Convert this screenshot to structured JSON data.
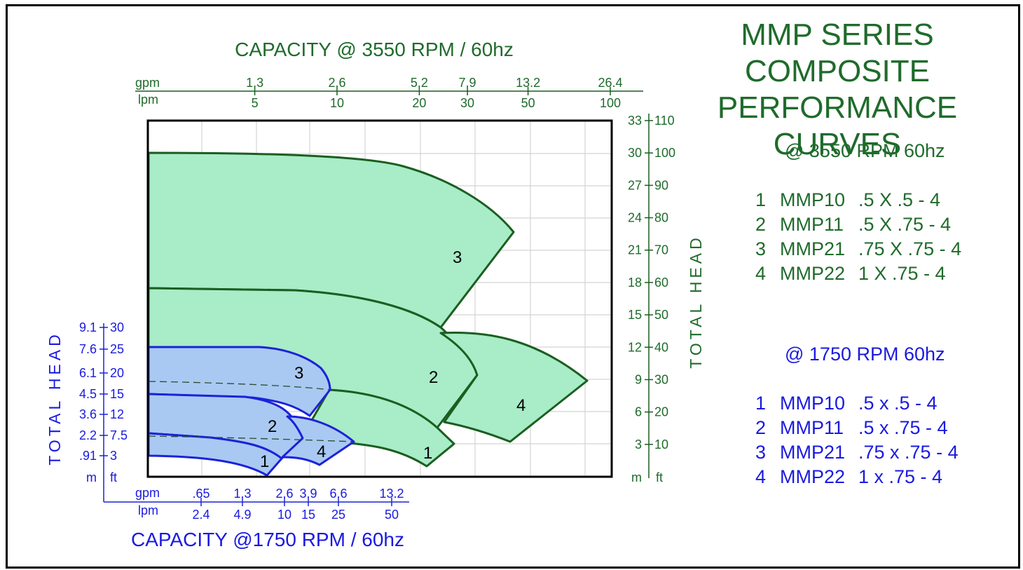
{
  "title_lines": [
    "MMP SERIES COMPOSITE",
    "PERFORMANCE CURVES"
  ],
  "colors": {
    "green_text": "#1f6b2b",
    "blue_text": "#1a1ae0",
    "green_fill": "#a8ecc8",
    "green_stroke": "#1b5e20",
    "blue_fill": "#a9c9f3",
    "blue_stroke": "#1c22d8",
    "grid": "#d4d4d4"
  },
  "legends": [
    {
      "heading": "@ 3550 RPM 60hz",
      "color": "#1f6b2b",
      "items": [
        {
          "num": "1",
          "model": "MMP10",
          "size": ".5 X .5 - 4"
        },
        {
          "num": "2",
          "model": "MMP11",
          "size": ".5 X .75 - 4"
        },
        {
          "num": "3",
          "model": "MMP21",
          "size": ".75 X .75 - 4"
        },
        {
          "num": "4",
          "model": "MMP22",
          "size": "1 X .75 - 4"
        }
      ]
    },
    {
      "heading": "@ 1750 RPM 60hz",
      "color": "#1a1ae0",
      "items": [
        {
          "num": "1",
          "model": "MMP10",
          "size": ".5 x .5 - 4"
        },
        {
          "num": "2",
          "model": "MMP11",
          "size": ".5 x .75 - 4"
        },
        {
          "num": "3",
          "model": "MMP21",
          "size": ".75 x .75 - 4"
        },
        {
          "num": "4",
          "model": "MMP22",
          "size": "1 x .75 - 4"
        }
      ]
    }
  ],
  "chart_data": {
    "type": "area",
    "top_axis": {
      "title": "CAPACITY @ 3550 RPM / 60hz",
      "unit_labels": [
        "gpm",
        "lpm"
      ],
      "scale": "log",
      "ticks": [
        {
          "lpm": 5,
          "gpm": "1.3",
          "lpm_label": "5"
        },
        {
          "lpm": 10,
          "gpm": "2.6",
          "lpm_label": "10"
        },
        {
          "lpm": 20,
          "gpm": "5.2",
          "lpm_label": "20"
        },
        {
          "lpm": 30,
          "gpm": "7.9",
          "lpm_label": "30"
        },
        {
          "lpm": 50,
          "gpm": "13.2",
          "lpm_label": "50"
        },
        {
          "lpm": 100,
          "gpm": "26.4",
          "lpm_label": "100"
        }
      ]
    },
    "right_axis": {
      "title": "TOTAL HEAD",
      "unit_labels": [
        "m",
        "ft"
      ],
      "range_ft": [
        0,
        110
      ],
      "ticks": [
        {
          "ft": 10,
          "m": "3",
          "ft_label": "10"
        },
        {
          "ft": 20,
          "m": "6",
          "ft_label": "20"
        },
        {
          "ft": 30,
          "m": "9",
          "ft_label": "30"
        },
        {
          "ft": 40,
          "m": "12",
          "ft_label": "40"
        },
        {
          "ft": 50,
          "m": "15",
          "ft_label": "50"
        },
        {
          "ft": 60,
          "m": "18",
          "ft_label": "60"
        },
        {
          "ft": 70,
          "m": "21",
          "ft_label": "70"
        },
        {
          "ft": 80,
          "m": "24",
          "ft_label": "80"
        },
        {
          "ft": 90,
          "m": "27",
          "ft_label": "90"
        },
        {
          "ft": 100,
          "m": "30",
          "ft_label": "100"
        },
        {
          "ft": 110,
          "m": "33",
          "ft_label": "110"
        }
      ]
    },
    "bottom_axis": {
      "title": "CAPACITY @1750 RPM / 60hz",
      "unit_labels": [
        "gpm",
        "lpm"
      ],
      "ticks": [
        {
          "lpm": 2.4,
          "gpm": ".65",
          "lpm_label": "2.4"
        },
        {
          "lpm": 4.9,
          "gpm": "1.3",
          "lpm_label": "4.9"
        },
        {
          "lpm": 10,
          "gpm": "2.6",
          "lpm_label": "10"
        },
        {
          "lpm": 15,
          "gpm": "3.9",
          "lpm_label": "15"
        },
        {
          "lpm": 25,
          "gpm": "6.6",
          "lpm_label": "25"
        },
        {
          "lpm": 50,
          "gpm": "13.2",
          "lpm_label": "50"
        }
      ]
    },
    "left_axis": {
      "title": "TOTAL HEAD",
      "unit_labels": [
        "m",
        "ft"
      ],
      "range_ft": [
        0,
        30
      ],
      "ticks": [
        {
          "ft": 3,
          "m": ".91",
          "ft_label": "3"
        },
        {
          "ft": 7.5,
          "m": "2.2",
          "ft_label": "7.5"
        },
        {
          "ft": 12,
          "m": "3.6",
          "ft_label": "12"
        },
        {
          "ft": 15,
          "m": "4.5",
          "ft_label": "15"
        },
        {
          "ft": 20,
          "m": "6.1",
          "ft_label": "20"
        },
        {
          "ft": 25,
          "m": "7.6",
          "ft_label": "25"
        },
        {
          "ft": 30,
          "m": "9.1",
          "ft_label": "30"
        }
      ]
    },
    "series_3550": [
      {
        "label": "3",
        "label_at": {
          "lpm": 34,
          "ft": 75
        },
        "top": [
          [
            2.6,
            100
          ],
          [
            8,
            99.5
          ],
          [
            15,
            98.5
          ],
          [
            22,
            95
          ],
          [
            30,
            88
          ],
          [
            40,
            79
          ],
          [
            45,
            74
          ]
        ],
        "bottom": [
          [
            2.6,
            64
          ],
          [
            8,
            63
          ],
          [
            15,
            60
          ],
          [
            22,
            55
          ],
          [
            30,
            43.5
          ]
        ]
      },
      {
        "label": "2",
        "label_at": {
          "lpm": 24,
          "ft": 34
        },
        "top": [
          [
            2.6,
            64
          ],
          [
            8,
            63
          ],
          [
            15,
            60
          ],
          [
            22,
            55
          ],
          [
            30,
            43.5
          ],
          [
            33,
            38
          ],
          [
            35,
            34
          ]
        ],
        "bottom": [
          [
            2.6,
            30
          ],
          [
            8,
            29.5
          ],
          [
            12,
            26
          ],
          [
            15,
            22
          ],
          [
            25,
            16
          ],
          [
            28,
            14
          ]
        ]
      },
      {
        "label": "1",
        "label_at": {
          "lpm": 25,
          "ft": 7
        },
        "top": [
          [
            12,
            26
          ],
          [
            15,
            22
          ],
          [
            25,
            16
          ],
          [
            28,
            14
          ]
        ],
        "bottom": [
          [
            15,
            10
          ],
          [
            20,
            8
          ],
          [
            28,
            7
          ]
        ]
      },
      {
        "label": "4",
        "label_at": {
          "lpm": 44,
          "ft": 23
        },
        "top": [
          [
            30,
            43.5
          ],
          [
            35,
            43
          ],
          [
            45,
            41
          ],
          [
            60,
            37
          ],
          [
            80,
            31
          ]
        ],
        "bottom": [
          [
            30,
            14
          ],
          [
            40,
            10
          ]
        ]
      }
    ],
    "series_1750": [
      {
        "label": "3",
        "label_at": {
          "lpm": 10.5,
          "ft": 21.5
        },
        "top": [
          [
            0,
            25
          ],
          [
            6,
            25
          ],
          [
            10,
            24
          ],
          [
            13,
            21
          ],
          [
            15,
            17
          ]
        ],
        "bottom": [
          [
            0,
            14
          ],
          [
            5,
            14
          ],
          [
            8,
            13
          ],
          [
            11,
            12
          ]
        ]
      },
      {
        "label": "2",
        "label_at": {
          "lpm": 9.5,
          "ft": 10
        }
      },
      {
        "label": "1",
        "label_at": {
          "lpm": 8.5,
          "ft": 3
        }
      },
      {
        "label": "4",
        "label_at": {
          "lpm": 14,
          "ft": 5
        }
      }
    ]
  }
}
